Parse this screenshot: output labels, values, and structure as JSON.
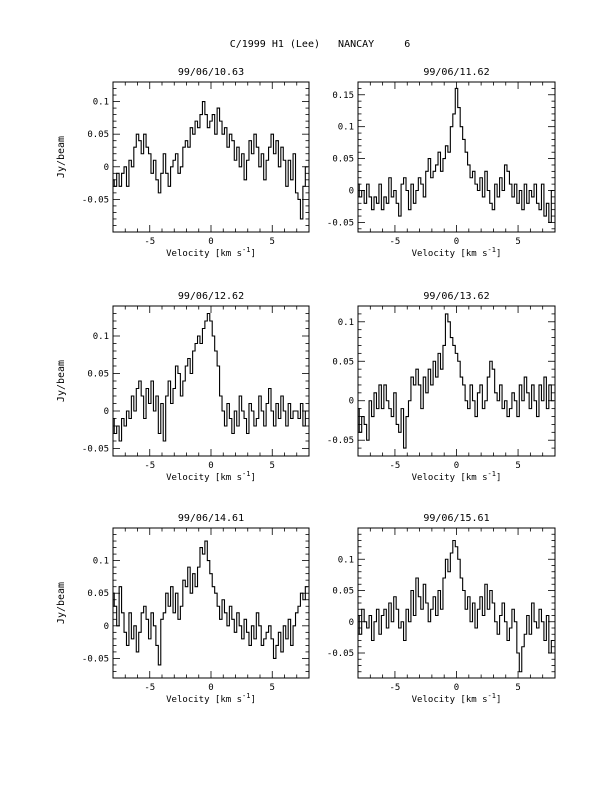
{
  "figure_title": "C/1999 H1 (Lee)   NANCAY     6",
  "chart_data": [
    {
      "type": "line",
      "title": "99/06/10.63",
      "xlabel": "Velocity [km s^-1]",
      "ylabel": "Jy/beam",
      "xlim": [
        -8,
        8
      ],
      "ylim": [
        -0.1,
        0.13
      ],
      "xticks": [
        -5,
        0,
        5
      ],
      "yticks": [
        -0.05,
        0,
        0.05,
        0.1
      ],
      "ytick_labels": [
        "-0.05",
        "0",
        "0.05",
        "0.1"
      ],
      "x": [
        -8.0,
        -7.8,
        -7.6,
        -7.4,
        -7.2,
        -7.0,
        -6.8,
        -6.6,
        -6.4,
        -6.2,
        -6.0,
        -5.8,
        -5.6,
        -5.4,
        -5.2,
        -5.0,
        -4.8,
        -4.6,
        -4.4,
        -4.2,
        -4.0,
        -3.8,
        -3.6,
        -3.4,
        -3.2,
        -3.0,
        -2.8,
        -2.6,
        -2.4,
        -2.2,
        -2.0,
        -1.8,
        -1.6,
        -1.4,
        -1.2,
        -1.0,
        -0.8,
        -0.6,
        -0.4,
        -0.2,
        0.0,
        0.2,
        0.4,
        0.6,
        0.8,
        1.0,
        1.2,
        1.4,
        1.6,
        1.8,
        2.0,
        2.2,
        2.4,
        2.6,
        2.8,
        3.0,
        3.2,
        3.4,
        3.6,
        3.8,
        4.0,
        4.2,
        4.4,
        4.6,
        4.8,
        5.0,
        5.2,
        5.4,
        5.6,
        5.8,
        6.0,
        6.2,
        6.4,
        6.6,
        6.8,
        7.0,
        7.2,
        7.4,
        7.6,
        7.8
      ],
      "values": [
        -0.02,
        -0.03,
        -0.01,
        -0.03,
        -0.01,
        0.0,
        -0.03,
        0.01,
        0.0,
        0.03,
        0.05,
        0.04,
        0.02,
        0.05,
        0.03,
        0.02,
        -0.01,
        0.01,
        -0.02,
        -0.04,
        -0.01,
        0.02,
        -0.01,
        -0.03,
        0.0,
        0.01,
        0.02,
        -0.01,
        0.0,
        0.03,
        0.04,
        0.03,
        0.06,
        0.05,
        0.07,
        0.06,
        0.08,
        0.1,
        0.08,
        0.06,
        0.07,
        0.08,
        0.05,
        0.09,
        0.07,
        0.05,
        0.06,
        0.03,
        0.05,
        0.04,
        0.01,
        0.03,
        0.0,
        0.02,
        -0.02,
        0.01,
        0.04,
        0.02,
        0.05,
        0.03,
        0.0,
        0.02,
        -0.02,
        0.01,
        0.03,
        0.05,
        0.02,
        0.04,
        0.0,
        0.03,
        0.01,
        -0.03,
        0.01,
        -0.02,
        0.02,
        -0.04,
        -0.05,
        -0.08,
        -0.03,
        0.0
      ]
    },
    {
      "type": "line",
      "title": "99/06/11.62",
      "xlabel": "Velocity [km s^-1]",
      "ylabel": "",
      "xlim": [
        -8,
        8
      ],
      "ylim": [
        -0.065,
        0.17
      ],
      "xticks": [
        -5,
        0,
        5
      ],
      "yticks": [
        -0.05,
        0,
        0.05,
        0.1,
        0.15
      ],
      "ytick_labels": [
        "-0.05",
        "0",
        "0.05",
        "0.1",
        "0.15"
      ],
      "x": [
        -8.0,
        -7.8,
        -7.6,
        -7.4,
        -7.2,
        -7.0,
        -6.8,
        -6.6,
        -6.4,
        -6.2,
        -6.0,
        -5.8,
        -5.6,
        -5.4,
        -5.2,
        -5.0,
        -4.8,
        -4.6,
        -4.4,
        -4.2,
        -4.0,
        -3.8,
        -3.6,
        -3.4,
        -3.2,
        -3.0,
        -2.8,
        -2.6,
        -2.4,
        -2.2,
        -2.0,
        -1.8,
        -1.6,
        -1.4,
        -1.2,
        -1.0,
        -0.8,
        -0.6,
        -0.4,
        -0.2,
        0.0,
        0.2,
        0.4,
        0.6,
        0.8,
        1.0,
        1.2,
        1.4,
        1.6,
        1.8,
        2.0,
        2.2,
        2.4,
        2.6,
        2.8,
        3.0,
        3.2,
        3.4,
        3.6,
        3.8,
        4.0,
        4.2,
        4.4,
        4.6,
        4.8,
        5.0,
        5.2,
        5.4,
        5.6,
        5.8,
        6.0,
        6.2,
        6.4,
        6.6,
        6.8,
        7.0,
        7.2,
        7.4,
        7.6,
        7.8
      ],
      "values": [
        0.01,
        -0.01,
        0.0,
        -0.02,
        0.01,
        -0.01,
        -0.03,
        -0.01,
        -0.02,
        0.01,
        -0.03,
        -0.01,
        -0.02,
        0.02,
        -0.01,
        0.0,
        -0.02,
        -0.04,
        0.01,
        0.02,
        0.0,
        -0.03,
        0.01,
        -0.02,
        0.0,
        0.02,
        0.01,
        -0.01,
        0.03,
        0.05,
        0.02,
        0.03,
        0.04,
        0.06,
        0.03,
        0.05,
        0.07,
        0.06,
        0.1,
        0.12,
        0.16,
        0.13,
        0.1,
        0.08,
        0.06,
        0.04,
        0.02,
        0.03,
        0.01,
        0.0,
        0.02,
        -0.01,
        0.03,
        0.0,
        -0.02,
        -0.03,
        0.01,
        -0.01,
        0.02,
        0.0,
        0.04,
        0.03,
        0.01,
        -0.01,
        0.01,
        -0.02,
        0.0,
        -0.03,
        0.01,
        -0.02,
        0.0,
        -0.01,
        0.01,
        -0.02,
        -0.03,
        0.01,
        -0.04,
        -0.02,
        -0.05,
        0.0
      ]
    },
    {
      "type": "line",
      "title": "99/06/12.62",
      "xlabel": "Velocity [km s^-1]",
      "ylabel": "Jy/beam",
      "xlim": [
        -8,
        8
      ],
      "ylim": [
        -0.06,
        0.14
      ],
      "xticks": [
        -5,
        0,
        5
      ],
      "yticks": [
        -0.05,
        0,
        0.05,
        0.1
      ],
      "ytick_labels": [
        "-0.05",
        "0",
        "0.05",
        "0.1"
      ],
      "x": [
        -8.0,
        -7.8,
        -7.6,
        -7.4,
        -7.2,
        -7.0,
        -6.8,
        -6.6,
        -6.4,
        -6.2,
        -6.0,
        -5.8,
        -5.6,
        -5.4,
        -5.2,
        -5.0,
        -4.8,
        -4.6,
        -4.4,
        -4.2,
        -4.0,
        -3.8,
        -3.6,
        -3.4,
        -3.2,
        -3.0,
        -2.8,
        -2.6,
        -2.4,
        -2.2,
        -2.0,
        -1.8,
        -1.6,
        -1.4,
        -1.2,
        -1.0,
        -0.8,
        -0.6,
        -0.4,
        -0.2,
        0.0,
        0.2,
        0.4,
        0.6,
        0.8,
        1.0,
        1.2,
        1.4,
        1.6,
        1.8,
        2.0,
        2.2,
        2.4,
        2.6,
        2.8,
        3.0,
        3.2,
        3.4,
        3.6,
        3.8,
        4.0,
        4.2,
        4.4,
        4.6,
        4.8,
        5.0,
        5.2,
        5.4,
        5.6,
        5.8,
        6.0,
        6.2,
        6.4,
        6.6,
        6.8,
        7.0,
        7.2,
        7.4,
        7.6,
        7.8
      ],
      "values": [
        -0.01,
        -0.03,
        -0.02,
        -0.04,
        -0.01,
        -0.02,
        0.0,
        -0.01,
        0.02,
        0.0,
        0.03,
        0.04,
        0.02,
        -0.01,
        0.03,
        0.01,
        0.04,
        0.0,
        0.02,
        -0.03,
        0.01,
        -0.04,
        0.02,
        0.04,
        0.01,
        0.03,
        0.06,
        0.05,
        0.02,
        0.04,
        0.06,
        0.07,
        0.05,
        0.08,
        0.09,
        0.1,
        0.09,
        0.11,
        0.12,
        0.13,
        0.12,
        0.1,
        0.08,
        0.06,
        0.02,
        0.0,
        -0.02,
        0.01,
        -0.01,
        -0.03,
        0.0,
        -0.02,
        0.02,
        0.0,
        -0.01,
        -0.03,
        0.01,
        0.0,
        -0.02,
        -0.01,
        0.02,
        0.0,
        -0.02,
        0.01,
        0.03,
        0.0,
        -0.02,
        0.01,
        -0.01,
        0.02,
        0.0,
        -0.02,
        0.01,
        -0.01,
        0.0,
        0.0,
        -0.01,
        0.01,
        -0.02,
        0.0
      ]
    },
    {
      "type": "line",
      "title": "99/06/13.62",
      "xlabel": "Velocity [km s^-1]",
      "ylabel": "",
      "xlim": [
        -8,
        8
      ],
      "ylim": [
        -0.07,
        0.12
      ],
      "xticks": [
        -5,
        0,
        5
      ],
      "yticks": [
        -0.05,
        0,
        0.05,
        0.1
      ],
      "ytick_labels": [
        "-0.05",
        "0",
        "0.05",
        "0.1"
      ],
      "x": [
        -8.0,
        -7.8,
        -7.6,
        -7.4,
        -7.2,
        -7.0,
        -6.8,
        -6.6,
        -6.4,
        -6.2,
        -6.0,
        -5.8,
        -5.6,
        -5.4,
        -5.2,
        -5.0,
        -4.8,
        -4.6,
        -4.4,
        -4.2,
        -4.0,
        -3.8,
        -3.6,
        -3.4,
        -3.2,
        -3.0,
        -2.8,
        -2.6,
        -2.4,
        -2.2,
        -2.0,
        -1.8,
        -1.6,
        -1.4,
        -1.2,
        -1.0,
        -0.8,
        -0.6,
        -0.4,
        -0.2,
        0.0,
        0.2,
        0.4,
        0.6,
        0.8,
        1.0,
        1.2,
        1.4,
        1.6,
        1.8,
        2.0,
        2.2,
        2.4,
        2.6,
        2.8,
        3.0,
        3.2,
        3.4,
        3.6,
        3.8,
        4.0,
        4.2,
        4.4,
        4.6,
        4.8,
        5.0,
        5.2,
        5.4,
        5.6,
        5.8,
        6.0,
        6.2,
        6.4,
        6.6,
        6.8,
        7.0,
        7.2,
        7.4,
        7.6,
        7.8
      ],
      "values": [
        -0.01,
        -0.04,
        -0.02,
        -0.03,
        -0.05,
        0.0,
        -0.02,
        0.01,
        -0.01,
        0.02,
        -0.01,
        0.02,
        0.0,
        -0.01,
        -0.02,
        0.01,
        -0.03,
        -0.04,
        -0.01,
        -0.06,
        -0.02,
        0.0,
        0.03,
        0.02,
        0.04,
        0.02,
        -0.01,
        0.03,
        0.01,
        0.04,
        0.02,
        0.05,
        0.03,
        0.06,
        0.04,
        0.07,
        0.11,
        0.1,
        0.08,
        0.07,
        0.06,
        0.05,
        0.03,
        0.02,
        0.0,
        -0.01,
        0.02,
        0.0,
        -0.02,
        0.01,
        0.02,
        -0.01,
        0.0,
        0.03,
        0.05,
        0.04,
        0.01,
        0.0,
        0.02,
        -0.01,
        0.0,
        -0.02,
        -0.01,
        0.01,
        0.0,
        -0.02,
        0.02,
        0.0,
        0.03,
        0.01,
        -0.01,
        0.02,
        0.0,
        -0.02,
        0.02,
        0.0,
        0.03,
        -0.01,
        0.02,
        0.0
      ]
    },
    {
      "type": "line",
      "title": "99/06/14.61",
      "xlabel": "Velocity [km s^-1]",
      "ylabel": "Jy/beam",
      "xlim": [
        -8,
        8
      ],
      "ylim": [
        -0.08,
        0.15
      ],
      "xticks": [
        -5,
        0,
        5
      ],
      "yticks": [
        -0.05,
        0,
        0.05,
        0.1
      ],
      "ytick_labels": [
        "-0.05",
        "0",
        "0.05",
        "0.1"
      ],
      "x": [
        -8.0,
        -7.8,
        -7.6,
        -7.4,
        -7.2,
        -7.0,
        -6.8,
        -6.6,
        -6.4,
        -6.2,
        -6.0,
        -5.8,
        -5.6,
        -5.4,
        -5.2,
        -5.0,
        -4.8,
        -4.6,
        -4.4,
        -4.2,
        -4.0,
        -3.8,
        -3.6,
        -3.4,
        -3.2,
        -3.0,
        -2.8,
        -2.6,
        -2.4,
        -2.2,
        -2.0,
        -1.8,
        -1.6,
        -1.4,
        -1.2,
        -1.0,
        -0.8,
        -0.6,
        -0.4,
        -0.2,
        0.0,
        0.2,
        0.4,
        0.6,
        0.8,
        1.0,
        1.2,
        1.4,
        1.6,
        1.8,
        2.0,
        2.2,
        2.4,
        2.6,
        2.8,
        3.0,
        3.2,
        3.4,
        3.6,
        3.8,
        4.0,
        4.2,
        4.4,
        4.6,
        4.8,
        5.0,
        5.2,
        5.4,
        5.6,
        5.8,
        6.0,
        6.2,
        6.4,
        6.6,
        6.8,
        7.0,
        7.2,
        7.4,
        7.6,
        7.8
      ],
      "values": [
        0.05,
        0.03,
        0.0,
        0.06,
        0.02,
        -0.01,
        -0.03,
        0.02,
        -0.02,
        0.0,
        -0.04,
        -0.01,
        0.02,
        0.03,
        0.01,
        -0.02,
        0.02,
        0.0,
        -0.03,
        -0.06,
        0.01,
        0.02,
        0.05,
        0.03,
        0.06,
        0.02,
        0.05,
        0.01,
        0.03,
        0.07,
        0.06,
        0.09,
        0.05,
        0.08,
        0.06,
        0.09,
        0.12,
        0.11,
        0.13,
        0.1,
        0.08,
        0.06,
        0.05,
        0.03,
        0.01,
        0.04,
        0.02,
        0.0,
        0.03,
        0.01,
        -0.01,
        0.02,
        0.0,
        -0.02,
        0.01,
        -0.01,
        -0.03,
        0.0,
        -0.02,
        0.02,
        0.0,
        -0.03,
        -0.02,
        -0.01,
        0.0,
        -0.02,
        -0.05,
        -0.03,
        -0.01,
        -0.04,
        0.0,
        -0.02,
        0.01,
        -0.03,
        0.0,
        0.02,
        0.03,
        0.05,
        0.04,
        0.06
      ]
    },
    {
      "type": "line",
      "title": "99/06/15.61",
      "xlabel": "Velocity [km s^-1]",
      "ylabel": "",
      "xlim": [
        -8,
        8
      ],
      "ylim": [
        -0.09,
        0.15
      ],
      "xticks": [
        -5,
        0,
        5
      ],
      "yticks": [
        -0.05,
        0,
        0.05,
        0.1
      ],
      "ytick_labels": [
        "-0.05",
        "0",
        "0.05",
        "0.1"
      ],
      "x": [
        -8.0,
        -7.8,
        -7.6,
        -7.4,
        -7.2,
        -7.0,
        -6.8,
        -6.6,
        -6.4,
        -6.2,
        -6.0,
        -5.8,
        -5.6,
        -5.4,
        -5.2,
        -5.0,
        -4.8,
        -4.6,
        -4.4,
        -4.2,
        -4.0,
        -3.8,
        -3.6,
        -3.4,
        -3.2,
        -3.0,
        -2.8,
        -2.6,
        -2.4,
        -2.2,
        -2.0,
        -1.8,
        -1.6,
        -1.4,
        -1.2,
        -1.0,
        -0.8,
        -0.6,
        -0.4,
        -0.2,
        0.0,
        0.2,
        0.4,
        0.6,
        0.8,
        1.0,
        1.2,
        1.4,
        1.6,
        1.8,
        2.0,
        2.2,
        2.4,
        2.6,
        2.8,
        3.0,
        3.2,
        3.4,
        3.6,
        3.8,
        4.0,
        4.2,
        4.4,
        4.6,
        4.8,
        5.0,
        5.2,
        5.4,
        5.6,
        5.8,
        6.0,
        6.2,
        6.4,
        6.6,
        6.8,
        7.0,
        7.2,
        7.4,
        7.6,
        7.8
      ],
      "values": [
        0.01,
        -0.02,
        0.02,
        0.0,
        -0.01,
        0.01,
        -0.03,
        0.0,
        0.02,
        -0.02,
        0.01,
        0.02,
        -0.01,
        0.03,
        0.0,
        0.04,
        0.02,
        -0.01,
        0.0,
        -0.03,
        0.02,
        0.0,
        0.05,
        0.01,
        0.07,
        0.04,
        0.02,
        0.06,
        0.03,
        0.0,
        0.02,
        0.04,
        0.01,
        0.05,
        0.02,
        0.07,
        0.1,
        0.08,
        0.11,
        0.13,
        0.12,
        0.1,
        0.07,
        0.05,
        0.02,
        0.04,
        0.0,
        0.03,
        -0.01,
        0.02,
        0.04,
        0.01,
        0.06,
        0.02,
        0.05,
        0.03,
        0.0,
        -0.02,
        0.01,
        0.03,
        0.0,
        -0.03,
        -0.01,
        0.02,
        0.0,
        -0.05,
        -0.08,
        -0.04,
        -0.02,
        0.01,
        -0.02,
        0.03,
        0.0,
        -0.01,
        0.02,
        0.0,
        -0.03,
        0.01,
        -0.05,
        -0.03
      ]
    }
  ]
}
